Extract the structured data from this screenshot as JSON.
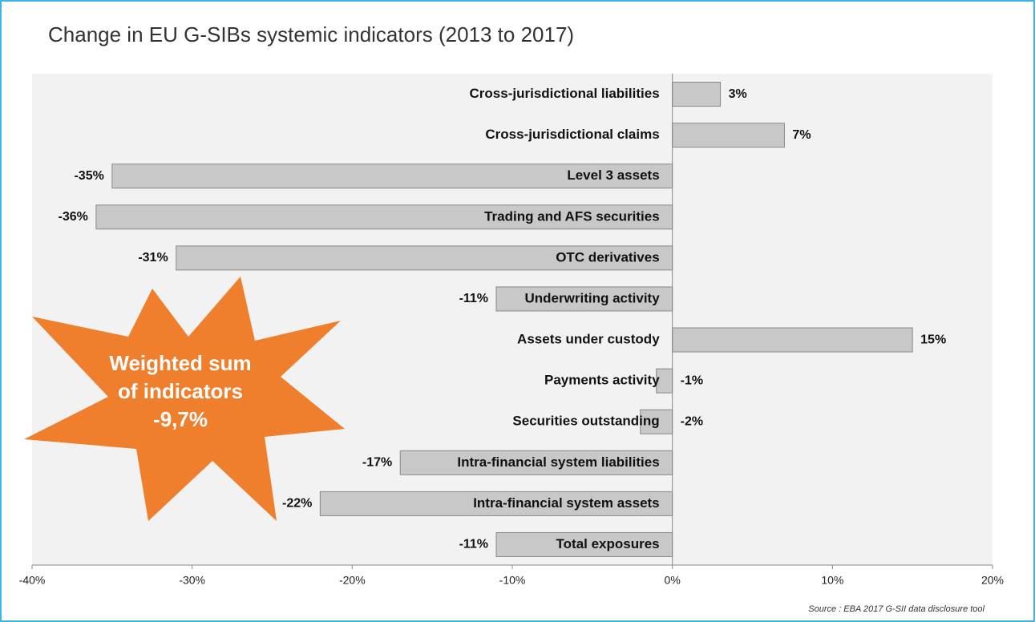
{
  "chart_data": {
    "type": "hbar",
    "title": "Change in EU G-SIBs systemic indicators (2013 to 2017)",
    "categories": [
      "Cross-jurisdictional liabilities",
      "Cross-jurisdictional claims",
      "Level 3 assets",
      "Trading and AFS securities",
      "OTC derivatives",
      "Underwriting activity",
      "Assets under custody",
      "Payments activity",
      "Securities outstanding",
      "Intra-financial system liabilities",
      "Intra-financial system assets",
      "Total exposures"
    ],
    "values": [
      3,
      7,
      -35,
      -36,
      -31,
      -11,
      15,
      -1,
      -2,
      -17,
      -22,
      -11
    ],
    "value_labels": [
      "3%",
      "7%",
      "-35%",
      "-36%",
      "-31%",
      "-11%",
      "15%",
      "-1%",
      "-2%",
      "-17%",
      "-22%",
      "-11%"
    ],
    "color": "#c8c8c8",
    "xlim": [
      -40,
      20
    ],
    "xticks": [
      {
        "value": -40,
        "label": "-40%"
      },
      {
        "value": -30,
        "label": "-30%"
      },
      {
        "value": -20,
        "label": "-20%"
      },
      {
        "value": -10,
        "label": "-10%"
      },
      {
        "value": 0,
        "label": "0%"
      },
      {
        "value": 10,
        "label": "10%"
      },
      {
        "value": 20,
        "label": "20%"
      }
    ],
    "annotation": [
      "Weighted sum",
      "of indicators",
      "-9,7%"
    ],
    "source": "Source : EBA 2017  G-SII data disclosure tool"
  }
}
